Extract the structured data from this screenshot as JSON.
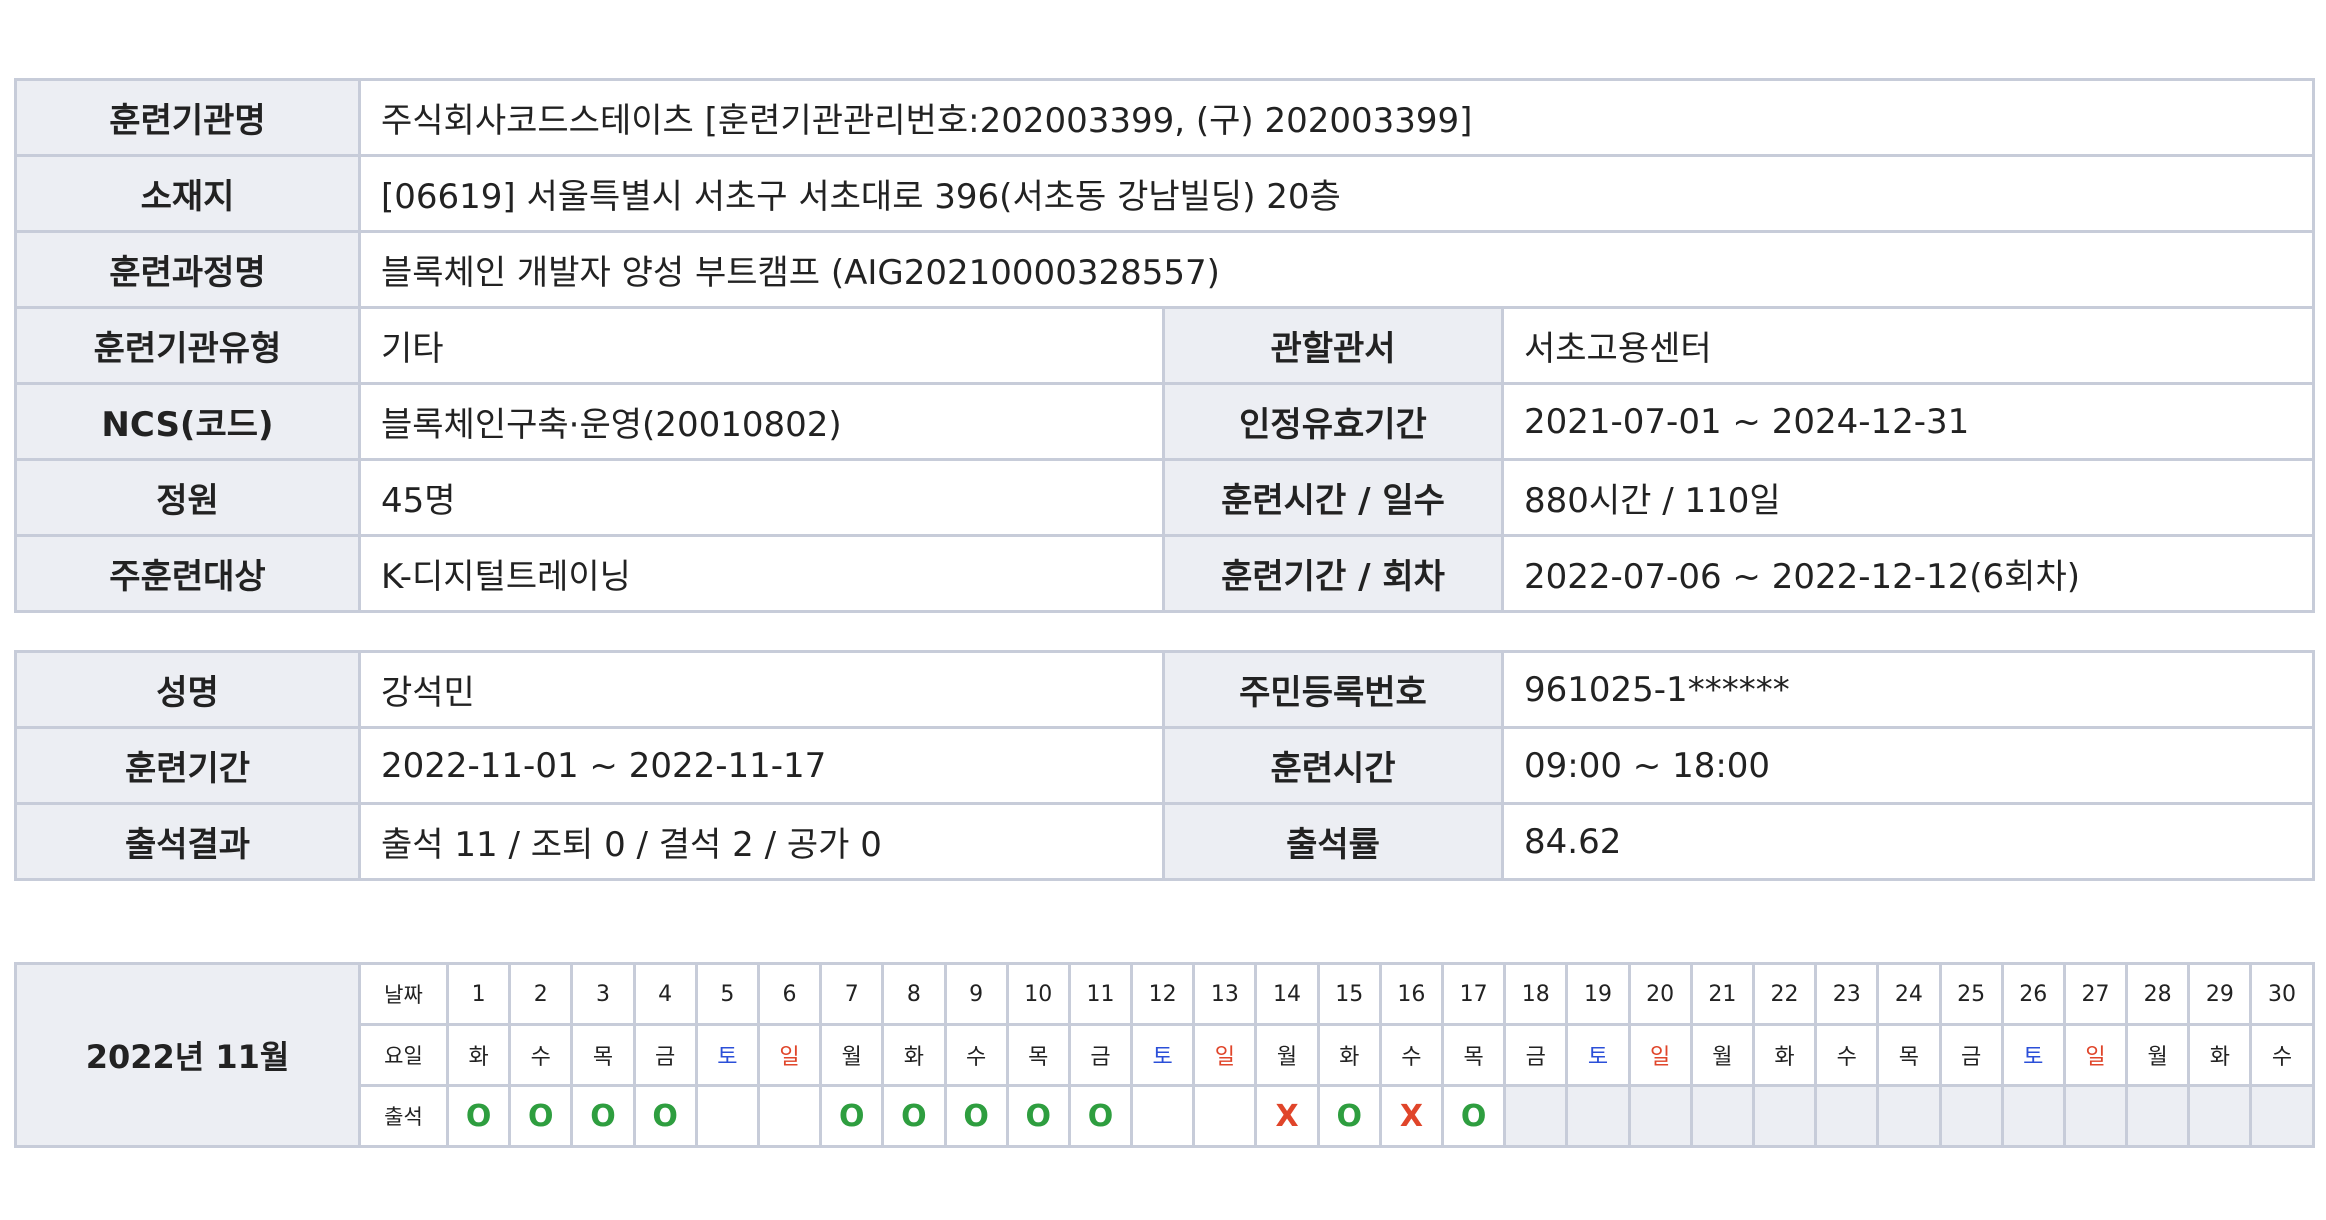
{
  "course_info": {
    "institution": {
      "label": "훈련기관명",
      "value": "주식회사코드스테이츠 [훈련기관관리번호:202003399, (구) 202003399]"
    },
    "address": {
      "label": "소재지",
      "value": "[06619] 서울특별시 서초구 서초대로 396(서초동 강남빌딩) 20층"
    },
    "course_name": {
      "label": "훈련과정명",
      "value": "블록체인 개발자 양성 부트캠프 (AIG20210000328557)"
    },
    "institution_type": {
      "label": "훈련기관유형",
      "value": "기타"
    },
    "jurisdiction": {
      "label": "관할관서",
      "value": "서초고용센터"
    },
    "ncs": {
      "label": "NCS(코드)",
      "value": "블록체인구축·운영(20010802)"
    },
    "cert_period": {
      "label": "인정유효기간",
      "value": "2021-07-01 ~ 2024-12-31"
    },
    "capacity": {
      "label": "정원",
      "value": "45명"
    },
    "hours_days": {
      "label": "훈련시간 / 일수",
      "value": "880시간 / 110일"
    },
    "target": {
      "label": "주훈련대상",
      "value": "K-디지털트레이닝"
    },
    "period_round": {
      "label": "훈련기간 / 회차",
      "value": "2022-07-06 ~ 2022-12-12(6회차)"
    }
  },
  "trainee": {
    "name": {
      "label": "성명",
      "value": "강석민"
    },
    "rrn": {
      "label": "주민등록번호",
      "value": "961025-1******"
    },
    "period": {
      "label": "훈련기간",
      "value": "2022-11-01 ~ 2022-11-17"
    },
    "time": {
      "label": "훈련시간",
      "value": "09:00 ~ 18:00"
    },
    "result": {
      "label": "출석결과",
      "value": "출석 11 / 조퇴 0 / 결석 2 / 공가 0"
    },
    "rate": {
      "label": "출석률",
      "value": "84.62"
    }
  },
  "calendar": {
    "month_label": "2022년 11월",
    "row_labels": {
      "date": "날짜",
      "weekday": "요일",
      "attendance": "출석"
    },
    "days": [
      {
        "date": "1",
        "weekday": "화",
        "mark": "O"
      },
      {
        "date": "2",
        "weekday": "수",
        "mark": "O"
      },
      {
        "date": "3",
        "weekday": "목",
        "mark": "O"
      },
      {
        "date": "4",
        "weekday": "금",
        "mark": "O"
      },
      {
        "date": "5",
        "weekday": "토",
        "mark": ""
      },
      {
        "date": "6",
        "weekday": "일",
        "mark": ""
      },
      {
        "date": "7",
        "weekday": "월",
        "mark": "O"
      },
      {
        "date": "8",
        "weekday": "화",
        "mark": "O"
      },
      {
        "date": "9",
        "weekday": "수",
        "mark": "O"
      },
      {
        "date": "10",
        "weekday": "목",
        "mark": "O"
      },
      {
        "date": "11",
        "weekday": "금",
        "mark": "O"
      },
      {
        "date": "12",
        "weekday": "토",
        "mark": ""
      },
      {
        "date": "13",
        "weekday": "일",
        "mark": ""
      },
      {
        "date": "14",
        "weekday": "월",
        "mark": "X"
      },
      {
        "date": "15",
        "weekday": "화",
        "mark": "O"
      },
      {
        "date": "16",
        "weekday": "수",
        "mark": "X"
      },
      {
        "date": "17",
        "weekday": "목",
        "mark": "O"
      },
      {
        "date": "18",
        "weekday": "금",
        "mark": null
      },
      {
        "date": "19",
        "weekday": "토",
        "mark": null
      },
      {
        "date": "20",
        "weekday": "일",
        "mark": null
      },
      {
        "date": "21",
        "weekday": "월",
        "mark": null
      },
      {
        "date": "22",
        "weekday": "화",
        "mark": null
      },
      {
        "date": "23",
        "weekday": "수",
        "mark": null
      },
      {
        "date": "24",
        "weekday": "목",
        "mark": null
      },
      {
        "date": "25",
        "weekday": "금",
        "mark": null
      },
      {
        "date": "26",
        "weekday": "토",
        "mark": null
      },
      {
        "date": "27",
        "weekday": "일",
        "mark": null
      },
      {
        "date": "28",
        "weekday": "월",
        "mark": null
      },
      {
        "date": "29",
        "weekday": "화",
        "mark": null
      },
      {
        "date": "30",
        "weekday": "수",
        "mark": null
      }
    ],
    "colors": {
      "saturday": "#2b4fd8",
      "sunday": "#e0452a",
      "present": "#2e9e3f",
      "absent": "#e0452a"
    }
  }
}
